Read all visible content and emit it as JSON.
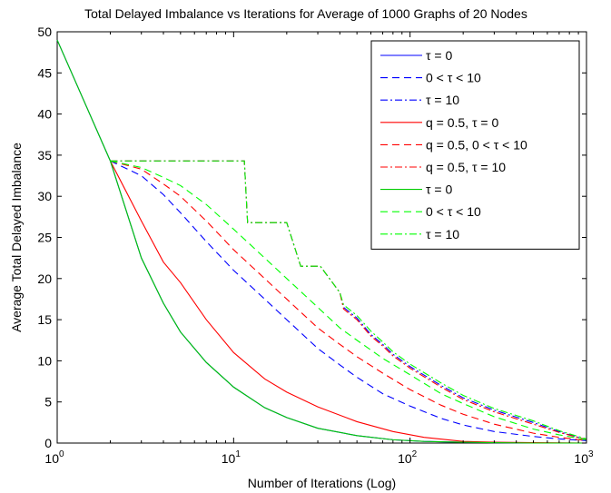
{
  "chart_data": {
    "type": "line",
    "title": "Total Delayed Imbalance vs Iterations for Average of 1000 Graphs of 20 Nodes",
    "xlabel": "Number of Iterations (Log)",
    "ylabel": "Average Total Delayed Imbalance",
    "xscale": "log",
    "xlim": [
      1,
      1000
    ],
    "ylim": [
      0,
      50
    ],
    "x_tick_labels": [
      {
        "base": "10",
        "exp": "0",
        "value": 1
      },
      {
        "base": "10",
        "exp": "1",
        "value": 10
      },
      {
        "base": "10",
        "exp": "2",
        "value": 100
      },
      {
        "base": "10",
        "exp": "3",
        "value": 1000
      }
    ],
    "y_ticks": [
      0,
      5,
      10,
      15,
      20,
      25,
      30,
      35,
      40,
      45,
      50
    ],
    "grid": false,
    "legend_position": "top-right",
    "series": [
      {
        "name": "τ = 0",
        "color": "#0000ff",
        "dash": "solid",
        "x": [
          1,
          2,
          3,
          4,
          5,
          7,
          10,
          15,
          20,
          30,
          50,
          80,
          120,
          200,
          300,
          500,
          1000
        ],
        "y": [
          49,
          34.3,
          22.5,
          17,
          13.5,
          9.8,
          6.8,
          4.3,
          3.1,
          1.8,
          0.9,
          0.4,
          0.2,
          0.1,
          0.05,
          0,
          0
        ]
      },
      {
        "name": "0 < τ < 10",
        "color": "#0000ff",
        "dash": "dashed",
        "x": [
          2,
          3,
          4,
          5,
          7,
          10,
          15,
          20,
          30,
          40,
          50,
          70,
          100,
          150,
          200,
          300,
          500,
          700,
          1000
        ],
        "y": [
          34.3,
          32.5,
          30.2,
          28,
          24.5,
          21,
          17.5,
          15,
          11.5,
          9.5,
          8,
          6,
          4.5,
          3,
          2.2,
          1.4,
          0.8,
          0.5,
          0.3
        ]
      },
      {
        "name": "τ = 10",
        "color": "#0000ff",
        "dash": "dashdot",
        "x": [
          2,
          11.5,
          12,
          20,
          24,
          31,
          40,
          42,
          50,
          60,
          70,
          80,
          100,
          150,
          200,
          300,
          500,
          700,
          1000
        ],
        "y": [
          34.3,
          34.3,
          26.8,
          26.8,
          21.5,
          21.5,
          18.3,
          16.5,
          15.2,
          13.2,
          12,
          10.8,
          9.3,
          7,
          5.5,
          4,
          2.5,
          1.4,
          0.4
        ]
      },
      {
        "name": "q = 0.5,  τ = 0",
        "color": "#ff0000",
        "dash": "solid",
        "x": [
          2,
          3,
          4,
          5,
          7,
          10,
          15,
          20,
          30,
          50,
          80,
          120,
          200,
          300,
          500,
          1000
        ],
        "y": [
          34.3,
          27,
          22,
          19.5,
          15,
          11,
          7.8,
          6.2,
          4.4,
          2.6,
          1.4,
          0.7,
          0.2,
          0.1,
          0.05,
          0
        ]
      },
      {
        "name": "q = 0.5,  0 < τ < 10",
        "color": "#ff0000",
        "dash": "dashed",
        "x": [
          2,
          3,
          4,
          5,
          7,
          10,
          15,
          20,
          30,
          40,
          50,
          70,
          100,
          150,
          200,
          300,
          500,
          700,
          1000
        ],
        "y": [
          34.3,
          33.3,
          31.5,
          30,
          27,
          23.5,
          20,
          17.5,
          14,
          12,
          10.5,
          8.5,
          6.5,
          4.6,
          3.5,
          2.3,
          1.2,
          0.7,
          0.3
        ]
      },
      {
        "name": "q = 0.5,  τ = 10",
        "color": "#ff0000",
        "dash": "dashdot",
        "x": [
          2,
          11.5,
          12,
          20,
          24,
          31,
          40,
          42,
          50,
          60,
          70,
          80,
          100,
          150,
          200,
          300,
          500,
          700,
          1000
        ],
        "y": [
          34.3,
          34.3,
          26.8,
          26.8,
          21.5,
          21.5,
          18.3,
          16.3,
          15,
          13,
          11.8,
          10.6,
          9.1,
          6.8,
          5.3,
          3.8,
          2.3,
          1.3,
          0.4
        ]
      },
      {
        "name": "τ = 0",
        "color": "#00cc00",
        "dash": "solid",
        "x": [
          1,
          2,
          3,
          4,
          5,
          7,
          10,
          15,
          20,
          30,
          50,
          80,
          120,
          200,
          300,
          500,
          1000
        ],
        "y": [
          49,
          34.3,
          22.5,
          17,
          13.5,
          9.8,
          6.8,
          4.3,
          3.1,
          1.8,
          0.9,
          0.4,
          0.2,
          0.1,
          0.05,
          0,
          0
        ]
      },
      {
        "name": "0 < τ < 10",
        "color": "#00ff00",
        "dash": "dashed",
        "x": [
          2,
          3,
          4,
          5,
          7,
          10,
          15,
          20,
          30,
          40,
          50,
          70,
          100,
          150,
          200,
          300,
          500,
          700,
          1000
        ],
        "y": [
          34.3,
          33.5,
          32.3,
          31.3,
          29,
          26,
          22.5,
          20,
          16.5,
          14,
          12.5,
          10.3,
          8.3,
          6,
          4.8,
          3.2,
          1.7,
          1,
          0.4
        ]
      },
      {
        "name": "τ = 10",
        "color": "#00ff00",
        "dash": "dashdot",
        "x": [
          2,
          11.5,
          12,
          20,
          24,
          31,
          40,
          42,
          50,
          60,
          70,
          80,
          100,
          150,
          200,
          300,
          500,
          700,
          1000
        ],
        "y": [
          34.3,
          34.3,
          26.8,
          26.8,
          21.5,
          21.5,
          18.3,
          16.8,
          15.5,
          13.6,
          12.3,
          11.1,
          9.6,
          7.3,
          5.8,
          4.2,
          2.7,
          1.5,
          0.5
        ]
      }
    ]
  }
}
